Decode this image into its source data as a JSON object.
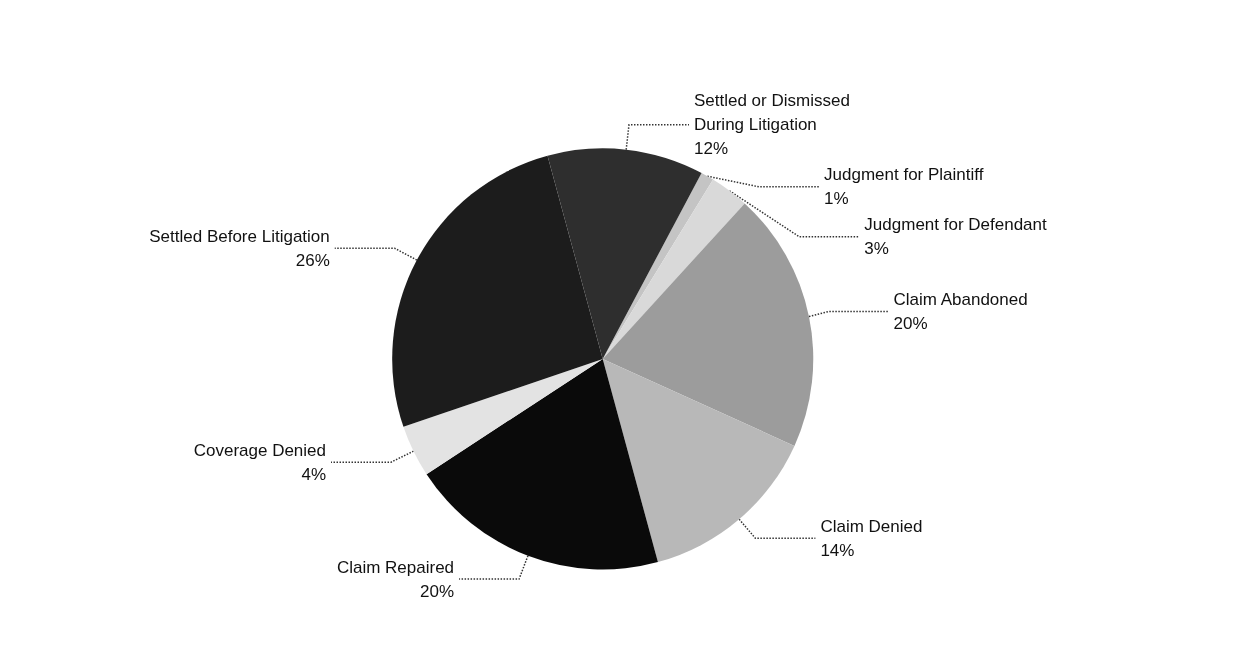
{
  "chart_data": {
    "type": "pie",
    "categories": [
      "Judgment for Plaintiff",
      "Judgment for Defendant",
      "Claim Abandoned",
      "Claim Denied",
      "Claim Repaired",
      "Coverage Denied",
      "Settled Before Litigation",
      "Settled or Dismissed During Litigation"
    ],
    "values": [
      1,
      3,
      20,
      14,
      20,
      4,
      26,
      12
    ],
    "value_labels": [
      "1%",
      "3%",
      "20%",
      "14%",
      "20%",
      "4%",
      "26%",
      "12%"
    ],
    "colors": [
      "#c4c4c4",
      "#d9d9d9",
      "#9c9c9c",
      "#b8b8b8",
      "#0a0a0a",
      "#e3e3e3",
      "#1c1c1c",
      "#2e2e2e"
    ],
    "legend": false
  }
}
